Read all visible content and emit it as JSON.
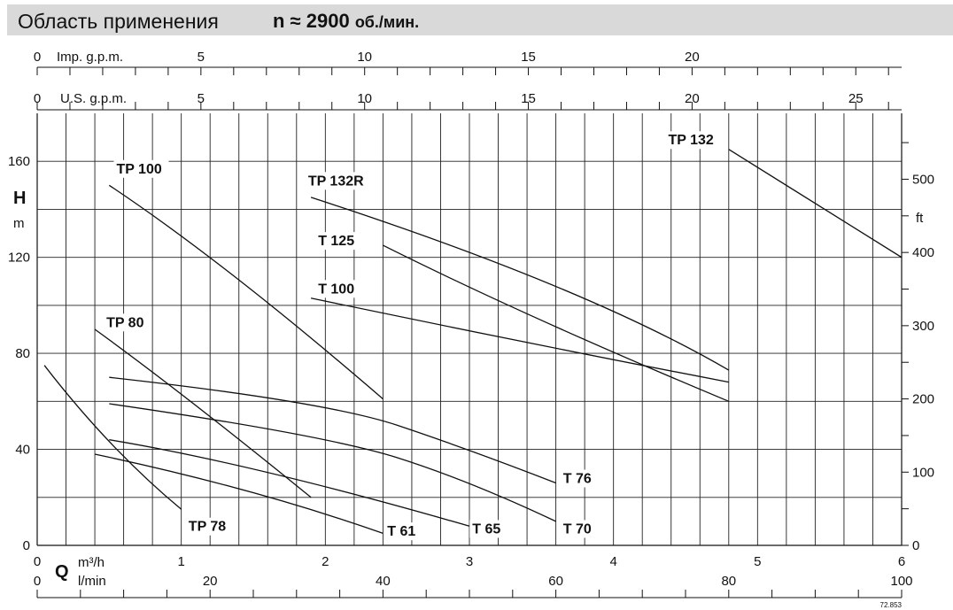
{
  "header": {
    "title": "Область применения",
    "speed_prefix": "n ≈ 2900",
    "speed_unit": "об./мин."
  },
  "chart_data": {
    "type": "line",
    "x_primary": {
      "label": "m³/h",
      "symbol": "Q",
      "range": [
        0,
        6
      ],
      "ticks": [
        0,
        1,
        2,
        3,
        4,
        5,
        6
      ]
    },
    "x_lmin": {
      "label": "l/min",
      "range": [
        0,
        100
      ],
      "ticks": [
        0,
        20,
        40,
        60,
        80,
        100
      ]
    },
    "x_imp": {
      "label": "Imp. g.p.m.",
      "range": [
        0,
        26.4
      ],
      "ticks": [
        0,
        5,
        10,
        15,
        20
      ]
    },
    "x_us": {
      "label": "U.S. g.p.m.",
      "range": [
        0,
        26.4
      ],
      "ticks": [
        0,
        5,
        10,
        15,
        20,
        25
      ]
    },
    "y_primary": {
      "label": "H",
      "unit": "m",
      "range": [
        0,
        180
      ],
      "ticks": [
        0,
        40,
        80,
        120,
        160
      ]
    },
    "y_secondary": {
      "label": "ft",
      "range": [
        0,
        590
      ],
      "ticks": [
        0,
        100,
        200,
        300,
        400,
        500
      ]
    },
    "grid": true,
    "series": [
      {
        "name": "TP 100",
        "points": [
          [
            0.5,
            150
          ],
          [
            1.3,
            118
          ],
          [
            2.4,
            61
          ]
        ]
      },
      {
        "name": "TP 80",
        "points": [
          [
            0.4,
            90
          ],
          [
            1.0,
            64
          ],
          [
            1.9,
            20
          ]
        ]
      },
      {
        "name": "TP 78",
        "points": [
          [
            0.05,
            75
          ],
          [
            0.5,
            40
          ],
          [
            1.0,
            15
          ]
        ]
      },
      {
        "name": "TP 132R",
        "points": [
          [
            1.9,
            145
          ],
          [
            3.8,
            108
          ],
          [
            4.8,
            73
          ]
        ]
      },
      {
        "name": "T 125",
        "points": [
          [
            2.4,
            125
          ],
          [
            3.4,
            95
          ],
          [
            4.8,
            60
          ]
        ]
      },
      {
        "name": "T 100",
        "points": [
          [
            1.9,
            103
          ],
          [
            3.5,
            83
          ],
          [
            4.8,
            68
          ]
        ]
      },
      {
        "name": "TP 132",
        "points": [
          [
            4.8,
            165
          ],
          [
            6.0,
            120
          ]
        ]
      },
      {
        "name": "T 76",
        "points": [
          [
            0.5,
            70
          ],
          [
            2.0,
            60
          ],
          [
            3.0,
            40
          ],
          [
            3.6,
            26
          ]
        ]
      },
      {
        "name": "T 70",
        "points": [
          [
            0.5,
            59
          ],
          [
            2.0,
            46
          ],
          [
            3.0,
            27
          ],
          [
            3.6,
            10
          ]
        ]
      },
      {
        "name": "T 65",
        "points": [
          [
            0.5,
            44
          ],
          [
            1.5,
            34
          ],
          [
            3.0,
            8
          ]
        ]
      },
      {
        "name": "T 61",
        "points": [
          [
            0.4,
            38
          ],
          [
            1.5,
            24
          ],
          [
            2.4,
            5
          ]
        ]
      }
    ],
    "labels": [
      {
        "text": "TP 100",
        "at": [
          0.55,
          155
        ]
      },
      {
        "text": "TP 80",
        "at": [
          0.48,
          91
        ]
      },
      {
        "text": "TP 78",
        "at": [
          1.05,
          6
        ]
      },
      {
        "text": "TP 132R",
        "at": [
          1.88,
          150
        ]
      },
      {
        "text": "T 125",
        "at": [
          1.95,
          125
        ]
      },
      {
        "text": "T 100",
        "at": [
          1.95,
          105
        ]
      },
      {
        "text": "TP 132",
        "at": [
          4.38,
          167
        ]
      },
      {
        "text": "T 76",
        "at": [
          3.65,
          26
        ]
      },
      {
        "text": "T 70",
        "at": [
          3.65,
          5
        ]
      },
      {
        "text": "T 65",
        "at": [
          3.02,
          5
        ]
      },
      {
        "text": "T 61",
        "at": [
          2.43,
          4
        ]
      }
    ],
    "footnote": "72.853"
  }
}
